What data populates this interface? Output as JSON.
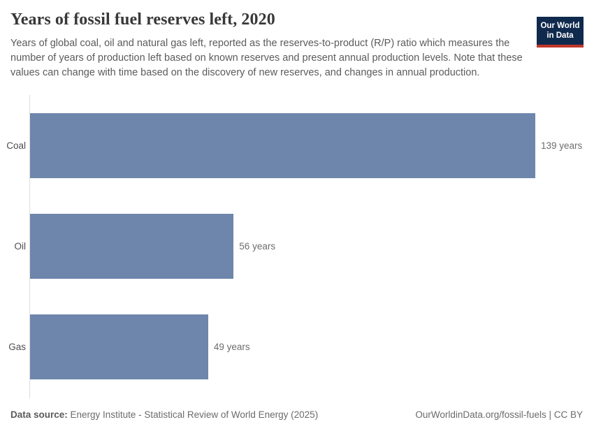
{
  "header": {
    "title": "Years of fossil fuel reserves left, 2020",
    "subtitle": "Years of global coal, oil and natural gas left, reported as the reserves-to-product (R/P) ratio which measures the number of years of production left based on known reserves and present annual production levels. Note that these values can change with time based on the discovery of new reserves, and changes in annual production.",
    "logo": {
      "line1": "Our World",
      "line2": "in Data"
    }
  },
  "chart_data": {
    "type": "bar",
    "orientation": "horizontal",
    "title": "Years of fossil fuel reserves left, 2020",
    "categories": [
      "Coal",
      "Oil",
      "Gas"
    ],
    "values": [
      139,
      56,
      49
    ],
    "value_labels": [
      "139 years",
      "56 years",
      "49 years"
    ],
    "unit": "years",
    "xlim": [
      0,
      139
    ],
    "grid": false,
    "legend": "none",
    "bar_color": "#6e86ab",
    "axis_line_color": "#dcdcdc"
  },
  "footer": {
    "source_label": "Data source:",
    "source_text": " Energy Institute - Statistical Review of World Energy (2025)",
    "link_text": "OurWorldinData.org/fossil-fuels | CC BY"
  },
  "colors": {
    "bar": "#6e86ab",
    "logo_navy": "#102a4e",
    "logo_red": "#c1362a",
    "title_text": "#383838",
    "subtitle_text": "#5b5b5b",
    "footer_text": "#6b6b6b"
  }
}
